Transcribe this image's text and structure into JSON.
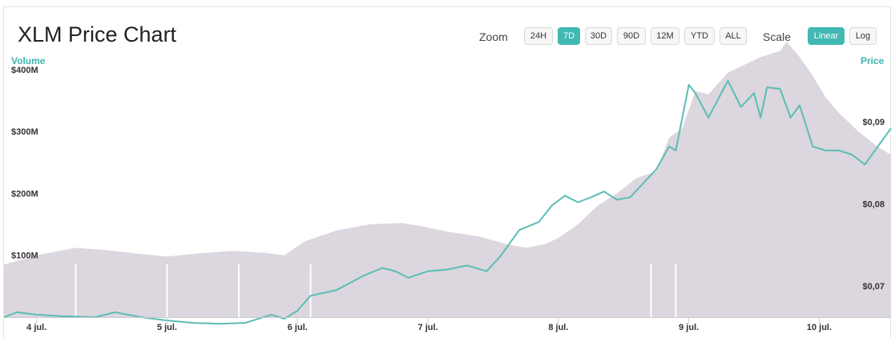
{
  "header": {
    "title": "XLM Price Chart"
  },
  "toolbar": {
    "zoom_label": "Zoom",
    "zoom_options": [
      "24H",
      "7D",
      "30D",
      "90D",
      "12M",
      "YTD",
      "ALL"
    ],
    "zoom_selected": "7D",
    "scale_label": "Scale",
    "scale_options": [
      "Linear",
      "Log"
    ],
    "scale_selected": "Linear"
  },
  "colors": {
    "accent": "#42b8b2",
    "price_line": "#5bbdb3",
    "volume_fill": "#dcd6df"
  },
  "chart_data": {
    "type": "area",
    "left_axis": {
      "title": "Volume",
      "ticks": [
        "$100M",
        "$200M",
        "$300M",
        "$400M"
      ],
      "tick_values": [
        100,
        200,
        300,
        400
      ],
      "unit": "M USD"
    },
    "right_axis": {
      "title": "Price",
      "ticks": [
        "$0,07",
        "$0,08",
        "$0,09"
      ],
      "tick_values": [
        0.07,
        0.08,
        0.09
      ]
    },
    "x_ticks": [
      "4 jul.",
      "5 jul.",
      "6 jul.",
      "7 jul.",
      "8 jul.",
      "9 jul.",
      "10 jul."
    ],
    "x_range": [
      3.75,
      10.55
    ],
    "volume": {
      "x": [
        3.75,
        4.0,
        4.3,
        4.55,
        4.75,
        5.0,
        5.25,
        5.5,
        5.75,
        5.9,
        6.05,
        6.3,
        6.55,
        6.8,
        6.95,
        7.15,
        7.4,
        7.6,
        7.75,
        7.9,
        8.0,
        8.15,
        8.3,
        8.45,
        8.6,
        8.75,
        8.85,
        8.95,
        9.05,
        9.15,
        9.3,
        9.45,
        9.55,
        9.7,
        9.75,
        9.85,
        9.95,
        10.05,
        10.15,
        10.3,
        10.45,
        10.55
      ],
      "values": [
        85,
        100,
        112,
        108,
        103,
        98,
        103,
        107,
        104,
        100,
        122,
        140,
        150,
        152,
        147,
        138,
        130,
        118,
        112,
        118,
        128,
        150,
        180,
        200,
        225,
        235,
        290,
        305,
        365,
        360,
        395,
        410,
        420,
        430,
        445,
        420,
        390,
        355,
        330,
        300,
        275,
        262
      ]
    },
    "price": {
      "x": [
        3.75,
        3.85,
        4.0,
        4.2,
        4.45,
        4.6,
        4.8,
        5.0,
        5.2,
        5.4,
        5.6,
        5.8,
        5.9,
        6.0,
        6.1,
        6.3,
        6.5,
        6.65,
        6.75,
        6.85,
        7.0,
        7.15,
        7.3,
        7.45,
        7.55,
        7.7,
        7.85,
        7.95,
        8.05,
        8.15,
        8.25,
        8.35,
        8.45,
        8.55,
        8.65,
        8.75,
        8.85,
        8.9,
        9.0,
        9.05,
        9.15,
        9.25,
        9.3,
        9.4,
        9.5,
        9.55,
        9.6,
        9.7,
        9.78,
        9.85,
        9.95,
        10.05,
        10.15,
        10.25,
        10.35,
        10.45,
        10.55
      ],
      "values": [
        0.0662,
        0.0668,
        0.0665,
        0.0663,
        0.0662,
        0.0668,
        0.0662,
        0.0658,
        0.0655,
        0.0654,
        0.0655,
        0.0665,
        0.066,
        0.067,
        0.0688,
        0.0695,
        0.0712,
        0.0722,
        0.0718,
        0.071,
        0.0718,
        0.072,
        0.0725,
        0.0718,
        0.0735,
        0.0768,
        0.0778,
        0.0798,
        0.081,
        0.0802,
        0.0808,
        0.0815,
        0.0805,
        0.0808,
        0.0825,
        0.0842,
        0.087,
        0.0865,
        0.0945,
        0.0935,
        0.0905,
        0.0935,
        0.095,
        0.0918,
        0.0935,
        0.0905,
        0.0942,
        0.094,
        0.0905,
        0.092,
        0.087,
        0.0865,
        0.0865,
        0.086,
        0.0848,
        0.087,
        0.0892
      ]
    }
  }
}
